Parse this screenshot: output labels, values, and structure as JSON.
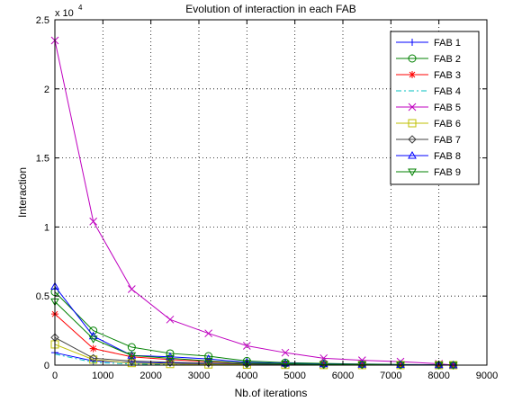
{
  "chart_data": {
    "type": "line",
    "title": "Evolution of interaction in each FAB",
    "xlabel": "Nb.of iterations",
    "ylabel": "Interaction",
    "y_multiplier_label": "x 10",
    "y_multiplier_exponent": "4",
    "xlim": [
      0,
      9000
    ],
    "ylim": [
      0,
      25000
    ],
    "x_ticks": [
      0,
      1000,
      2000,
      3000,
      4000,
      5000,
      6000,
      7000,
      8000,
      9000
    ],
    "x_tick_labels": [
      "0",
      "1000",
      "2000",
      "3000",
      "4000",
      "5000",
      "6000",
      "7000",
      "8000",
      "9000"
    ],
    "y_ticks": [
      0,
      5000,
      10000,
      15000,
      20000,
      25000
    ],
    "y_tick_labels": [
      "0",
      "0.5",
      "1",
      "1.5",
      "2",
      "2.5"
    ],
    "grid": true,
    "legend_position": "top-right",
    "x": [
      0,
      800,
      1600,
      2400,
      3200,
      4000,
      4800,
      5600,
      6400,
      7200,
      8000,
      8300
    ],
    "series": [
      {
        "name": "FAB 1",
        "color": "#0000ff",
        "marker": "plus",
        "dash": "",
        "values": [
          900,
          300,
          200,
          150,
          100,
          60,
          40,
          30,
          20,
          10,
          5,
          0
        ]
      },
      {
        "name": "FAB 2",
        "color": "#008000",
        "marker": "circle",
        "dash": "",
        "values": [
          5300,
          2500,
          1300,
          850,
          650,
          300,
          180,
          120,
          80,
          50,
          20,
          0
        ]
      },
      {
        "name": "FAB 3",
        "color": "#ff0000",
        "marker": "asterisk",
        "dash": "",
        "values": [
          3700,
          1200,
          600,
          400,
          250,
          150,
          90,
          60,
          40,
          20,
          10,
          0
        ]
      },
      {
        "name": "FAB 4",
        "color": "#00bfbf",
        "marker": "none",
        "dash": "6,3,2,3",
        "values": [
          800,
          200,
          80,
          50,
          30,
          20,
          10,
          8,
          5,
          3,
          1,
          0
        ]
      },
      {
        "name": "FAB 5",
        "color": "#bf00bf",
        "marker": "cross",
        "dash": "",
        "values": [
          23500,
          10400,
          5500,
          3300,
          2300,
          1400,
          900,
          500,
          350,
          250,
          100,
          0
        ]
      },
      {
        "name": "FAB 6",
        "color": "#bfbf00",
        "marker": "square",
        "dash": "",
        "values": [
          1500,
          400,
          150,
          80,
          50,
          30,
          20,
          10,
          5,
          3,
          1,
          0
        ]
      },
      {
        "name": "FAB 7",
        "color": "#404040",
        "marker": "diamond",
        "dash": "",
        "values": [
          2000,
          500,
          300,
          200,
          150,
          80,
          50,
          30,
          20,
          10,
          5,
          0
        ]
      },
      {
        "name": "FAB 8",
        "color": "#0000ff",
        "marker": "triangle-up",
        "dash": "",
        "values": [
          5700,
          2100,
          700,
          600,
          450,
          200,
          130,
          80,
          50,
          30,
          15,
          0
        ]
      },
      {
        "name": "FAB 9",
        "color": "#008000",
        "marker": "triangle-down",
        "dash": "",
        "values": [
          4600,
          1900,
          700,
          500,
          300,
          150,
          100,
          60,
          40,
          20,
          10,
          0
        ]
      }
    ]
  }
}
